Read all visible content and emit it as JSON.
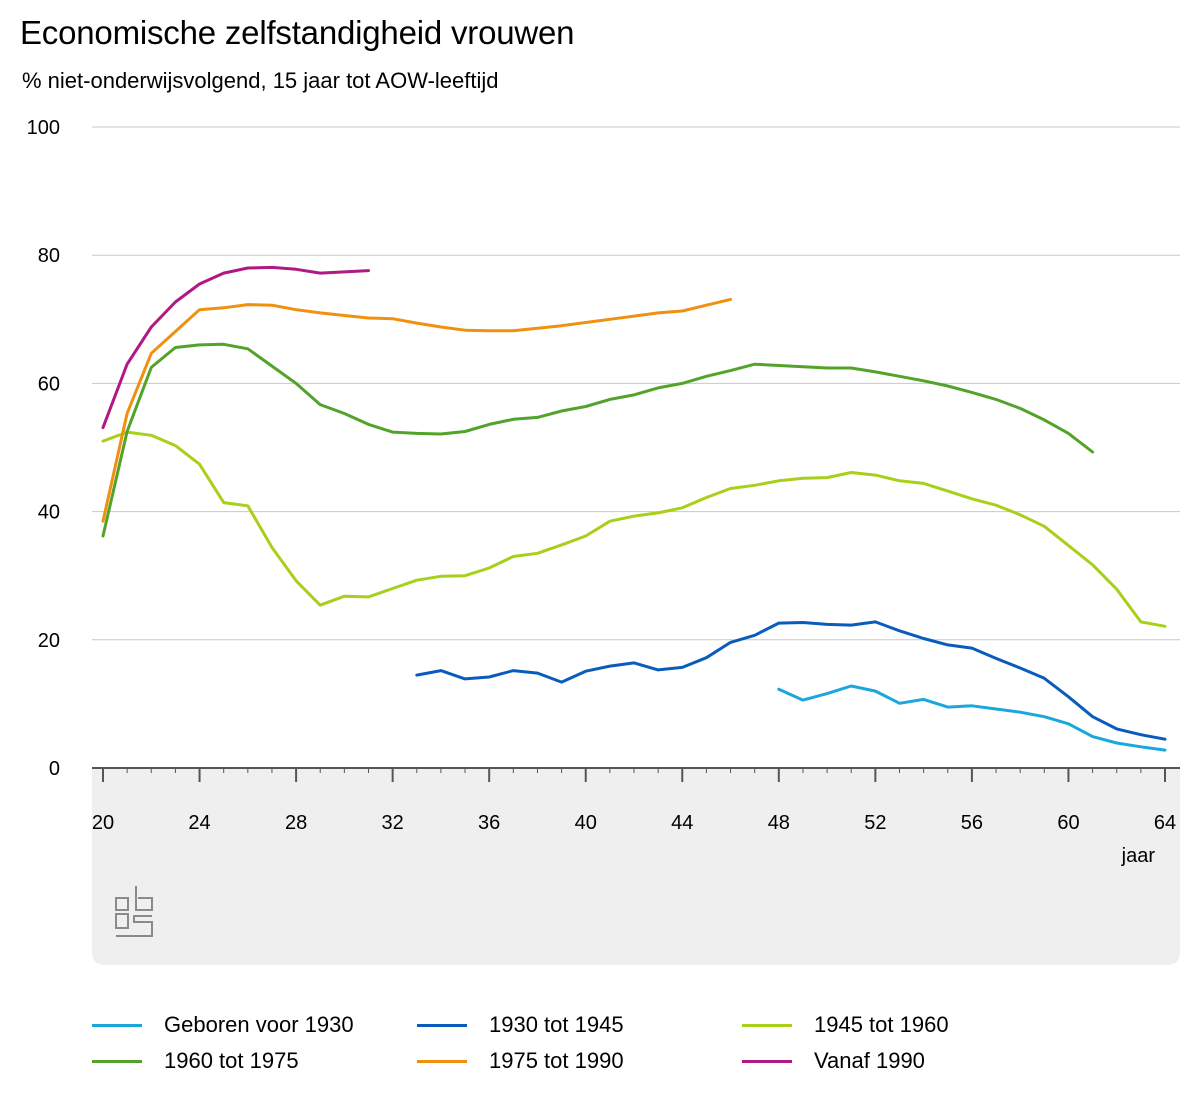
{
  "chart_data": {
    "type": "line",
    "title": "Economische zelfstandigheid vrouwen",
    "subtitle": "% niet-onderwijsvolgend, 15 jaar tot AOW-leeftijd",
    "xlabel": "jaar",
    "ylabel": "",
    "xlim": [
      20,
      64
    ],
    "ylim": [
      0,
      100
    ],
    "x_ticks": [
      "20",
      "24",
      "28",
      "32",
      "36",
      "40",
      "44",
      "48",
      "52",
      "56",
      "60",
      "64"
    ],
    "y_ticks": [
      "0",
      "20",
      "40",
      "60",
      "80",
      "100"
    ],
    "grid": true,
    "legend_position": "bottom",
    "series": [
      {
        "name": "Geboren voor 1930",
        "color": "#1aa8dc",
        "x": [
          48,
          49,
          50,
          51,
          52,
          53,
          54,
          55,
          56,
          57,
          58,
          59,
          60,
          61,
          62,
          63,
          64
        ],
        "y": [
          12.3,
          10.6,
          11.6,
          12.8,
          12.0,
          10.1,
          10.7,
          9.5,
          9.7,
          9.2,
          8.7,
          8.0,
          6.9,
          4.9,
          3.9,
          3.3,
          2.8
        ]
      },
      {
        "name": "1930 tot 1945",
        "color": "#0a5cbc",
        "x": [
          33,
          34,
          35,
          36,
          37,
          38,
          39,
          40,
          41,
          42,
          43,
          44,
          45,
          46,
          47,
          48,
          49,
          50,
          51,
          52,
          53,
          54,
          55,
          56,
          57,
          58,
          59,
          60,
          61,
          62,
          63,
          64
        ],
        "y": [
          14.5,
          15.2,
          13.9,
          14.2,
          15.2,
          14.8,
          13.4,
          15.1,
          15.9,
          16.4,
          15.3,
          15.7,
          17.2,
          19.6,
          20.7,
          22.6,
          22.7,
          22.4,
          22.3,
          22.8,
          21.4,
          20.2,
          19.2,
          18.7,
          17.1,
          15.6,
          14.0,
          11.1,
          8.0,
          6.1,
          5.2,
          4.5
        ]
      },
      {
        "name": "1945 tot 1960",
        "color": "#a8cf1a",
        "x": [
          20,
          21,
          22,
          23,
          24,
          25,
          26,
          27,
          28,
          29,
          30,
          31,
          32,
          33,
          34,
          35,
          36,
          37,
          38,
          39,
          40,
          41,
          42,
          43,
          44,
          45,
          46,
          47,
          48,
          49,
          50,
          51,
          52,
          53,
          54,
          55,
          56,
          57,
          58,
          59,
          60,
          61,
          62,
          63,
          64
        ],
        "y": [
          51.0,
          52.4,
          51.9,
          50.3,
          47.4,
          41.4,
          40.9,
          34.4,
          29.2,
          25.4,
          26.8,
          26.7,
          28.0,
          29.3,
          29.9,
          30.0,
          31.2,
          33.0,
          33.5,
          34.8,
          36.2,
          38.5,
          39.3,
          39.8,
          40.6,
          42.2,
          43.6,
          44.1,
          44.8,
          45.2,
          45.3,
          46.1,
          45.7,
          44.8,
          44.4,
          43.2,
          42.0,
          41.0,
          39.5,
          37.7,
          34.7,
          31.7,
          27.9,
          22.8,
          22.1
        ]
      },
      {
        "name": "1960 tot 1975",
        "color": "#53a32b",
        "x": [
          20,
          21,
          22,
          23,
          24,
          25,
          26,
          27,
          28,
          29,
          30,
          31,
          32,
          33,
          34,
          35,
          36,
          37,
          38,
          39,
          40,
          41,
          42,
          43,
          44,
          45,
          46,
          47,
          48,
          49,
          50,
          51,
          52,
          53,
          54,
          55,
          56,
          57,
          58,
          59,
          60,
          61
        ],
        "y": [
          36.2,
          52.5,
          62.5,
          65.6,
          66.0,
          66.1,
          65.4,
          62.7,
          60.0,
          56.7,
          55.3,
          53.6,
          52.4,
          52.2,
          52.1,
          52.5,
          53.6,
          54.4,
          54.7,
          55.7,
          56.4,
          57.5,
          58.2,
          59.3,
          60.0,
          61.1,
          62.0,
          63.0,
          62.8,
          62.6,
          62.4,
          62.4,
          61.8,
          61.1,
          60.4,
          59.6,
          58.6,
          57.5,
          56.1,
          54.3,
          52.2,
          49.3
        ]
      },
      {
        "name": "1975 tot 1990",
        "color": "#f0900f",
        "x": [
          20,
          21,
          22,
          23,
          24,
          25,
          26,
          27,
          28,
          29,
          30,
          31,
          32,
          33,
          34,
          35,
          36,
          37,
          38,
          39,
          40,
          41,
          42,
          43,
          44,
          45,
          46
        ],
        "y": [
          38.5,
          55.3,
          64.7,
          68.1,
          71.5,
          71.8,
          72.3,
          72.2,
          71.5,
          71.0,
          70.6,
          70.2,
          70.1,
          69.4,
          68.8,
          68.3,
          68.2,
          68.2,
          68.6,
          69.0,
          69.5,
          70.0,
          70.5,
          71.0,
          71.3,
          72.2,
          73.1
        ]
      },
      {
        "name": "Vanaf 1990",
        "color": "#b01884",
        "x": [
          20,
          21,
          22,
          23,
          24,
          25,
          26,
          27,
          28,
          29,
          30,
          31
        ],
        "y": [
          53.1,
          63.0,
          68.8,
          72.7,
          75.5,
          77.2,
          78.0,
          78.1,
          77.8,
          77.2,
          77.4,
          77.6
        ]
      }
    ]
  }
}
